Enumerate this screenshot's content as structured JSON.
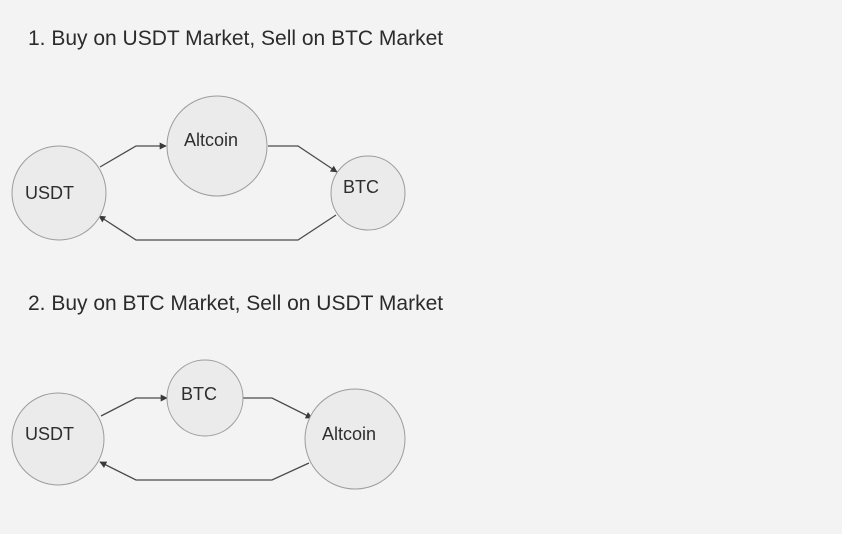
{
  "diagrams": [
    {
      "title": "1. Buy on USDT Market, Sell on BTC Market",
      "nodes": {
        "left": "USDT",
        "middle": "Altcoin",
        "right": "BTC"
      }
    },
    {
      "title": "2. Buy on BTC Market, Sell on USDT Market",
      "nodes": {
        "left": "USDT",
        "middle": "BTC",
        "right": "Altcoin"
      }
    }
  ],
  "colors": {
    "background": "#f3f3f3",
    "node_fill": "#ebebeb",
    "node_stroke": "#9c9c9c",
    "edge": "#4a4a4a"
  }
}
